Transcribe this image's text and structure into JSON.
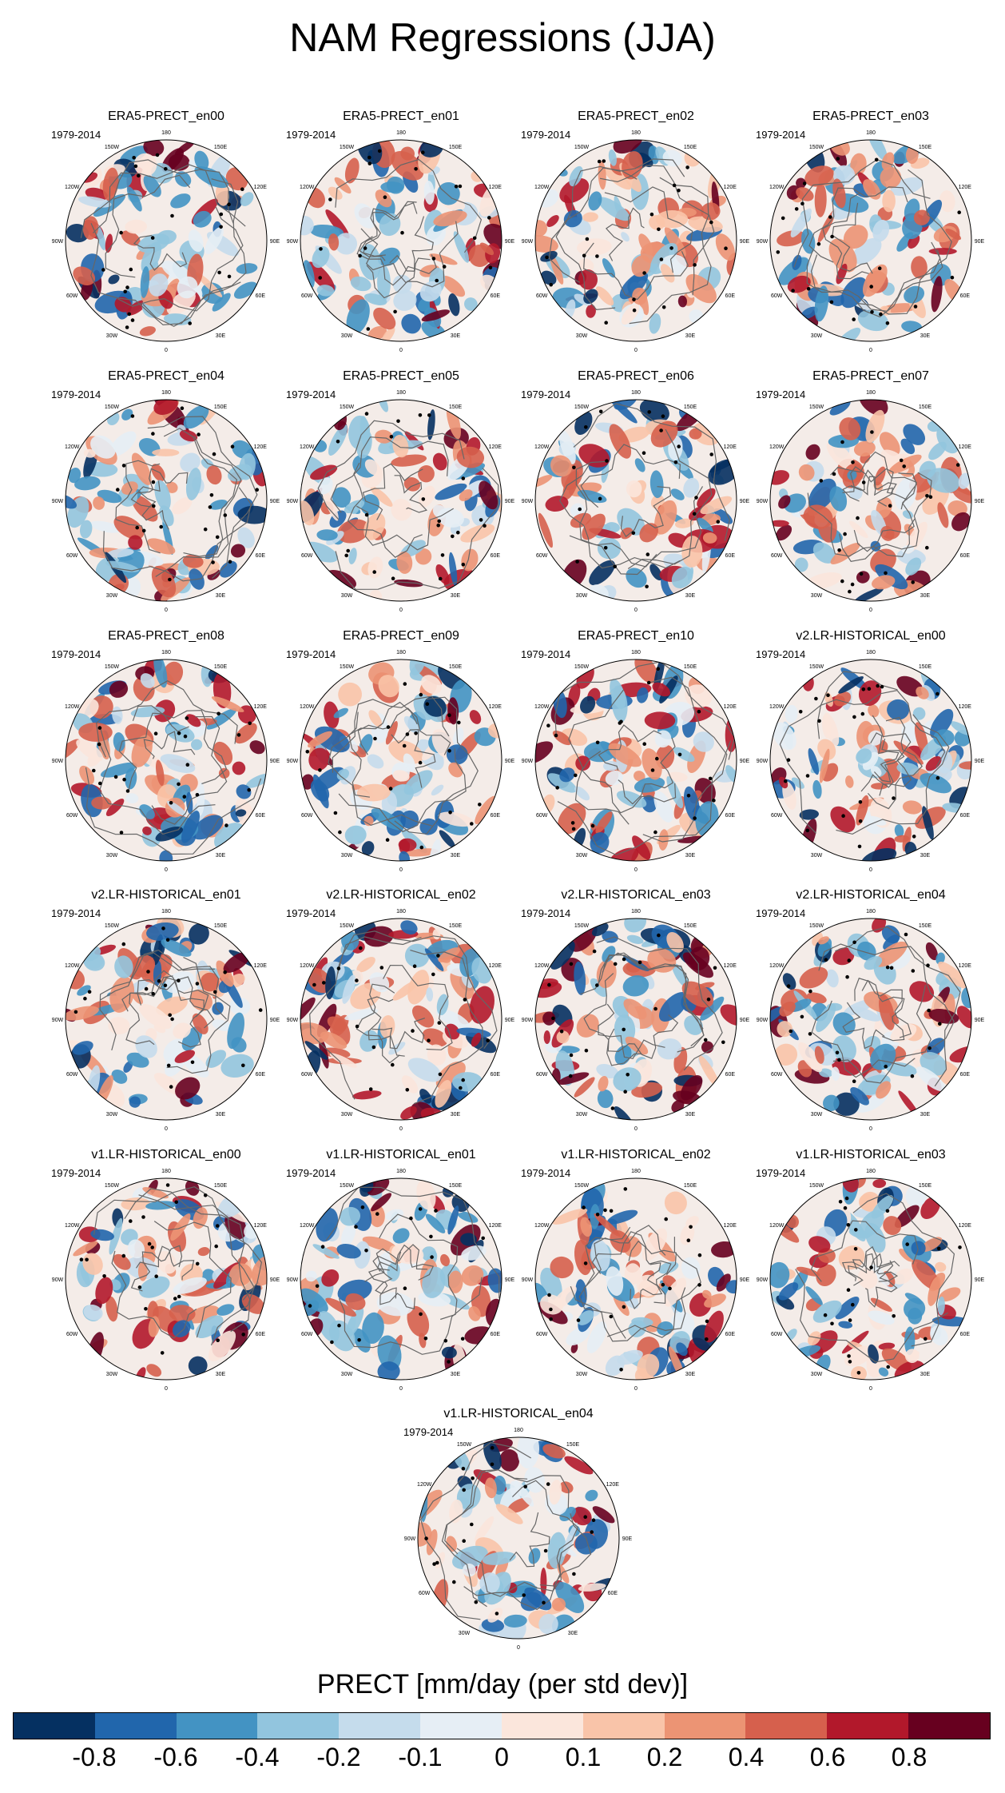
{
  "title": "NAM Regressions (JJA)",
  "period": "1979-2014",
  "panels": [
    {
      "name": "ERA5-PRECT_en00"
    },
    {
      "name": "ERA5-PRECT_en01"
    },
    {
      "name": "ERA5-PRECT_en02"
    },
    {
      "name": "ERA5-PRECT_en03"
    },
    {
      "name": "ERA5-PRECT_en04"
    },
    {
      "name": "ERA5-PRECT_en05"
    },
    {
      "name": "ERA5-PRECT_en06"
    },
    {
      "name": "ERA5-PRECT_en07"
    },
    {
      "name": "ERA5-PRECT_en08"
    },
    {
      "name": "ERA5-PRECT_en09"
    },
    {
      "name": "ERA5-PRECT_en10"
    },
    {
      "name": "v2.LR-HISTORICAL_en00"
    },
    {
      "name": "v2.LR-HISTORICAL_en01"
    },
    {
      "name": "v2.LR-HISTORICAL_en02"
    },
    {
      "name": "v2.LR-HISTORICAL_en03"
    },
    {
      "name": "v2.LR-HISTORICAL_en04"
    },
    {
      "name": "v1.LR-HISTORICAL_en00"
    },
    {
      "name": "v1.LR-HISTORICAL_en01"
    },
    {
      "name": "v1.LR-HISTORICAL_en02"
    },
    {
      "name": "v1.LR-HISTORICAL_en03"
    },
    {
      "name": "v1.LR-HISTORICAL_en04"
    }
  ],
  "longitude_labels": [
    "180",
    "150E",
    "120E",
    "90E",
    "60E",
    "30E",
    "0",
    "30W",
    "60W",
    "90W",
    "120W",
    "150W"
  ],
  "colorbar": {
    "label": "PRECT [mm/day (per std dev)]",
    "colors": [
      "#053061",
      "#2166ac",
      "#4393c3",
      "#92c5de",
      "#c5dcec",
      "#e6eef5",
      "#fbe6dc",
      "#f9c4a9",
      "#ec9474",
      "#d6604d",
      "#b2182b",
      "#67001f"
    ],
    "ticks": [
      "-0.8",
      "-0.6",
      "-0.4",
      "-0.2",
      "-0.1",
      "0",
      "0.1",
      "0.2",
      "0.4",
      "0.6",
      "0.8"
    ]
  }
}
